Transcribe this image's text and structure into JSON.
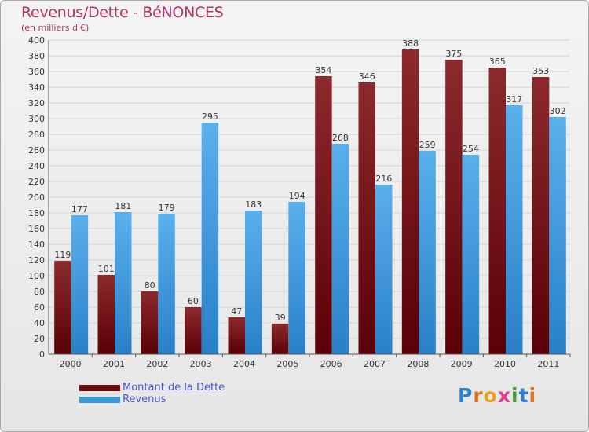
{
  "title": "Revenus/Dette - BéNONCES",
  "subtitle": "(en milliers d'€)",
  "logo": {
    "letters": [
      "P",
      "r",
      "o",
      "x",
      "i",
      "t",
      "i"
    ],
    "colors": [
      "#2f7fd0",
      "#e07020",
      "#f0a020",
      "#e04090",
      "#40a040",
      "#2f7fd0",
      "#e07020"
    ]
  },
  "chart_data": {
    "type": "bar",
    "categories": [
      "2000",
      "2001",
      "2002",
      "2003",
      "2004",
      "2005",
      "2006",
      "2007",
      "2008",
      "2009",
      "2010",
      "2011"
    ],
    "series": [
      {
        "name": "Montant de la Dette",
        "values": [
          119,
          101,
          80,
          60,
          47,
          39,
          354,
          346,
          388,
          375,
          365,
          353
        ],
        "color": "#6b0d10"
      },
      {
        "name": "Revenus",
        "values": [
          177,
          181,
          179,
          295,
          183,
          194,
          268,
          216,
          259,
          254,
          317,
          302
        ],
        "color": "#3d98dc"
      }
    ],
    "ylim": [
      0,
      400
    ],
    "ytick_step": 20,
    "yticks": [
      "0",
      "20",
      "40",
      "60",
      "80",
      "100",
      "120",
      "140",
      "160",
      "180",
      "200",
      "220",
      "240",
      "260",
      "280",
      "300",
      "320",
      "340",
      "360",
      "380",
      "400"
    ],
    "grid": true,
    "legend_position": "bottom-left"
  }
}
